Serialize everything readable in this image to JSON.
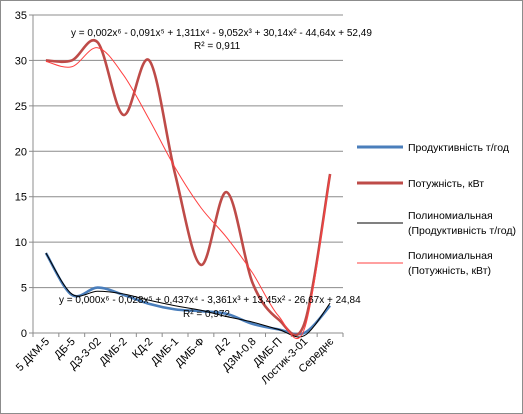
{
  "chart_data": {
    "type": "line",
    "categories": [
      "5 ДКМ-5",
      "ДБ-5",
      "ДЗ-3-02",
      "ДМБ-2",
      "КД-2",
      "ДМБ-1",
      "ДМБ-Ф",
      "Д-2",
      "ДЗМ-0,8",
      "ДМБ-П",
      "Лостик-3-01",
      "Середнє"
    ],
    "ylim": [
      0,
      35
    ],
    "yticks": [
      0,
      5,
      10,
      15,
      20,
      25,
      30,
      35
    ],
    "grid": true,
    "legend_position": "right",
    "series": [
      {
        "name": "Продуктивність т/год",
        "color": "#4a7ebb",
        "values": [
          8.8,
          4.2,
          5.0,
          4.2,
          3.2,
          2.6,
          2.4,
          2.1,
          1.0,
          0.4,
          0.0,
          3.0
        ]
      },
      {
        "name": "Потужність, кВт",
        "color": "#be4b48",
        "values": [
          30,
          30,
          32,
          24,
          30,
          17.5,
          7.5,
          15.5,
          5.5,
          1.5,
          1.0,
          17.5
        ]
      }
    ],
    "trendlines": [
      {
        "name": "Полиномиальная (Продуктивність т/год)",
        "color": "#000000",
        "values": [
          8.8,
          4.3,
          4.6,
          4.3,
          3.6,
          3.0,
          2.5,
          1.8,
          1.2,
          0.4,
          -0.3,
          3.3
        ]
      },
      {
        "name": "Полиномиальная (Потужність, кВт)",
        "color": "#ff4040",
        "values": [
          29.9,
          29.3,
          31.4,
          28.4,
          23.5,
          18.2,
          13.8,
          10.5,
          6.6,
          1.9,
          0.4,
          17.4
        ]
      }
    ],
    "annotations": [
      {
        "text": "y = 0,002x⁶ - 0,091x⁵ + 1,311x⁴ - 9,052x³ + 30,14x² - 44,64x + 52,49"
      },
      {
        "text": "R² = 0,911"
      },
      {
        "text": "y = 0,000x⁶ - 0,028x⁵ + 0,437x⁴ - 3,361x³ + 13,45x² - 26,67x + 24,84"
      },
      {
        "text": "R² = 0,972"
      }
    ]
  }
}
